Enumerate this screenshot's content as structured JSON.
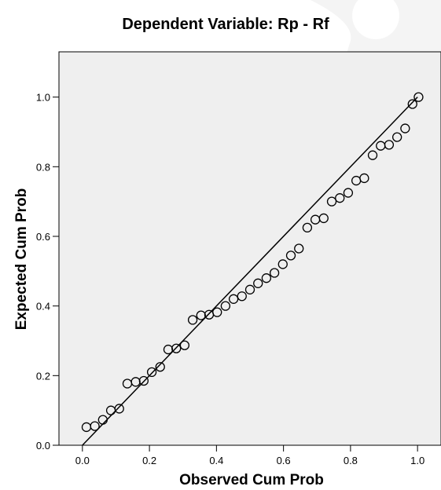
{
  "chart_data": {
    "type": "scatter",
    "title": "Dependent Variable: Rp - Rf",
    "xlabel": "Observed Cum Prob",
    "ylabel": "Expected Cum Prob",
    "xlim": [
      -0.07,
      1.07
    ],
    "ylim": [
      0,
      1.13
    ],
    "xticks": [
      "0.0",
      "0.2",
      "0.4",
      "0.6",
      "0.8",
      "1.0"
    ],
    "yticks": [
      "0.0",
      "0.2",
      "0.4",
      "0.6",
      "0.8",
      "1.0"
    ],
    "grid": false,
    "reference_line": {
      "from": [
        0,
        0
      ],
      "to": [
        1,
        1
      ]
    },
    "points": [
      [
        0.012,
        0.052
      ],
      [
        0.037,
        0.055
      ],
      [
        0.061,
        0.073
      ],
      [
        0.085,
        0.1
      ],
      [
        0.11,
        0.105
      ],
      [
        0.134,
        0.177
      ],
      [
        0.159,
        0.182
      ],
      [
        0.183,
        0.185
      ],
      [
        0.207,
        0.21
      ],
      [
        0.232,
        0.225
      ],
      [
        0.256,
        0.275
      ],
      [
        0.28,
        0.278
      ],
      [
        0.305,
        0.287
      ],
      [
        0.329,
        0.36
      ],
      [
        0.354,
        0.373
      ],
      [
        0.378,
        0.375
      ],
      [
        0.402,
        0.382
      ],
      [
        0.427,
        0.4
      ],
      [
        0.451,
        0.42
      ],
      [
        0.476,
        0.428
      ],
      [
        0.5,
        0.447
      ],
      [
        0.524,
        0.465
      ],
      [
        0.549,
        0.48
      ],
      [
        0.573,
        0.495
      ],
      [
        0.598,
        0.52
      ],
      [
        0.622,
        0.545
      ],
      [
        0.646,
        0.565
      ],
      [
        0.671,
        0.625
      ],
      [
        0.695,
        0.648
      ],
      [
        0.72,
        0.652
      ],
      [
        0.744,
        0.7
      ],
      [
        0.768,
        0.71
      ],
      [
        0.793,
        0.725
      ],
      [
        0.817,
        0.76
      ],
      [
        0.841,
        0.767
      ],
      [
        0.866,
        0.833
      ],
      [
        0.89,
        0.86
      ],
      [
        0.915,
        0.863
      ],
      [
        0.939,
        0.885
      ],
      [
        0.963,
        0.91
      ],
      [
        0.985,
        0.98
      ],
      [
        1.003,
        1.0
      ]
    ]
  },
  "style": {
    "plot_background": "#efefef",
    "point_stroke": "#000000",
    "line_color": "#000000"
  }
}
